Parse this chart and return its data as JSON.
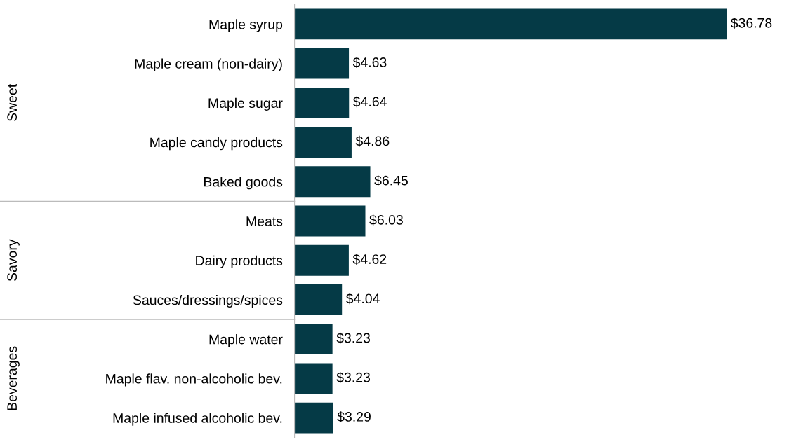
{
  "chart_data": {
    "type": "bar",
    "orientation": "horizontal",
    "categories": [
      "Maple syrup",
      "Maple cream (non-dairy)",
      "Maple sugar",
      "Maple candy products",
      "Baked goods",
      "Meats",
      "Dairy products",
      "Sauces/dressings/spices",
      "Maple water",
      "Maple flav. non-alcoholic bev.",
      "Maple infused alcoholic bev."
    ],
    "values": [
      36.78,
      4.63,
      4.64,
      4.86,
      6.45,
      6.03,
      4.62,
      4.04,
      3.23,
      3.23,
      3.29
    ],
    "value_labels": [
      "$36.78",
      "$4.63",
      "$4.64",
      "$4.86",
      "$6.45",
      "$6.03",
      "$4.62",
      "$4.04",
      "$3.23",
      "$3.23",
      "$3.29"
    ],
    "color": "#053a46",
    "tick_labels": "y",
    "annotations": [
      "Sweet",
      "Savory",
      "Beverages"
    ],
    "grid": false,
    "legend": false
  }
}
